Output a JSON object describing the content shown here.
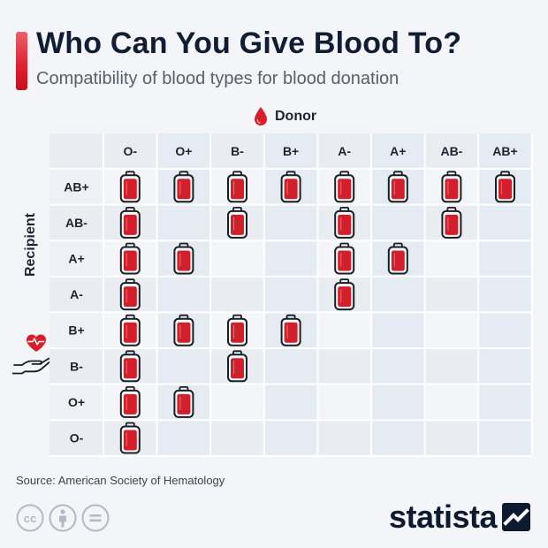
{
  "header": {
    "title": "Who Can You Give Blood To?",
    "subtitle": "Compatibility of blood types for blood donation"
  },
  "donor_label": "Donor",
  "recipient_label": "Recipient",
  "colors": {
    "accent": "#d81e2a",
    "blood_fill": "#d21f2c",
    "bag_outline": "#1a1d22",
    "column_shaded": "#e5ebf2",
    "row_shaded": "#e9edf2",
    "cell_base": "#f3f5f8",
    "text_dark": "#101d33"
  },
  "chart_data": {
    "type": "table",
    "title": "Who Can You Give Blood To?",
    "subtitle": "Compatibility of blood types for blood donation",
    "columns_label": "Donor",
    "rows_label": "Recipient",
    "donors": [
      "O-",
      "O+",
      "B-",
      "B+",
      "A-",
      "A+",
      "AB-",
      "AB+"
    ],
    "recipients": [
      "AB+",
      "AB-",
      "A+",
      "A-",
      "B+",
      "B-",
      "O+",
      "O-"
    ],
    "compatible": {
      "AB+": [
        "O-",
        "O+",
        "B-",
        "B+",
        "A-",
        "A+",
        "AB-",
        "AB+"
      ],
      "AB-": [
        "O-",
        "B-",
        "A-",
        "AB-"
      ],
      "A+": [
        "O-",
        "O+",
        "A-",
        "A+"
      ],
      "A-": [
        "O-",
        "A-"
      ],
      "B+": [
        "O-",
        "O+",
        "B-",
        "B+"
      ],
      "B-": [
        "O-",
        "B-"
      ],
      "O+": [
        "O-",
        "O+"
      ],
      "O-": [
        "O-"
      ]
    },
    "marker_icon": "blood-bag-icon"
  },
  "footer": {
    "source": "Source: American Society of Hematology",
    "brand": "statista",
    "license_icons": [
      "creative-commons-icon",
      "attribution-icon",
      "no-derivatives-icon"
    ]
  }
}
